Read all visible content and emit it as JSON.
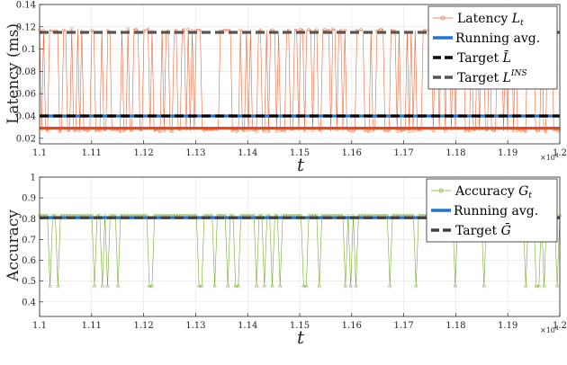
{
  "chart_data": [
    {
      "type": "line",
      "ylabel": "Latency (ms)",
      "xlabel": "t",
      "x_multiplier_label": "×10",
      "x_multiplier_exp": "4",
      "xlim": [
        1.1,
        1.2
      ],
      "ylim": [
        0.015,
        0.14
      ],
      "xticks": [
        "1.1",
        "1.11",
        "1.12",
        "1.13",
        "1.14",
        "1.15",
        "1.16",
        "1.17",
        "1.18",
        "1.19",
        "1.2"
      ],
      "yticks": [
        "0.02",
        "0.04",
        "0.06",
        "0.08",
        "0.1",
        "0.12",
        "0.14"
      ],
      "ytick_values": [
        0.02,
        0.04,
        0.06,
        0.08,
        0.1,
        0.12,
        0.14
      ],
      "grid": true,
      "legend_position": "top-right",
      "series": [
        {
          "name": "Latency",
          "name_italic": "L",
          "name_sub": "t",
          "kind": "spiky",
          "color": "#e8673a",
          "high": 0.117,
          "low": 0.027,
          "marker": "circle"
        },
        {
          "name": "Running avg.",
          "kind": "flat",
          "color": "#1f77d4",
          "value": 0.04
        },
        {
          "name": "Target",
          "name_italic": "L̄",
          "kind": "flat",
          "color": "#000000",
          "value": 0.04,
          "dashed": true
        },
        {
          "name": "Target",
          "name_italic": "L",
          "name_sup": "INS",
          "kind": "flat",
          "color": "#555555",
          "value": 0.115,
          "dashed": true
        },
        {
          "name": "",
          "kind": "flat",
          "color": "#e84a1e",
          "value": 0.029
        }
      ]
    },
    {
      "type": "line",
      "ylabel": "Accuracy",
      "xlabel": "t",
      "x_multiplier_label": "×10",
      "x_multiplier_exp": "4",
      "xlim": [
        1.1,
        1.2
      ],
      "ylim": [
        0.33,
        1.0
      ],
      "xticks": [
        "1.1",
        "1.11",
        "1.12",
        "1.13",
        "1.14",
        "1.15",
        "1.16",
        "1.17",
        "1.18",
        "1.19",
        "1.2"
      ],
      "yticks": [
        "0.4",
        "0.5",
        "0.6",
        "0.7",
        "0.8",
        "0.9",
        "1"
      ],
      "ytick_values": [
        0.4,
        0.5,
        0.6,
        0.7,
        0.8,
        0.9,
        1.0
      ],
      "grid": true,
      "legend_position": "top-right",
      "series": [
        {
          "name": "Accuracy",
          "name_italic": "G",
          "name_sub": "t",
          "kind": "spiky-down",
          "color": "#77ac30",
          "high": 0.815,
          "low": 0.475,
          "marker": "circle"
        },
        {
          "name": "Running avg.",
          "kind": "flat",
          "color": "#1f77d4",
          "value": 0.805
        },
        {
          "name": "Target",
          "name_italic": "Ḡ",
          "kind": "flat",
          "color": "#404040",
          "value": 0.805,
          "dashed": true
        }
      ]
    }
  ]
}
